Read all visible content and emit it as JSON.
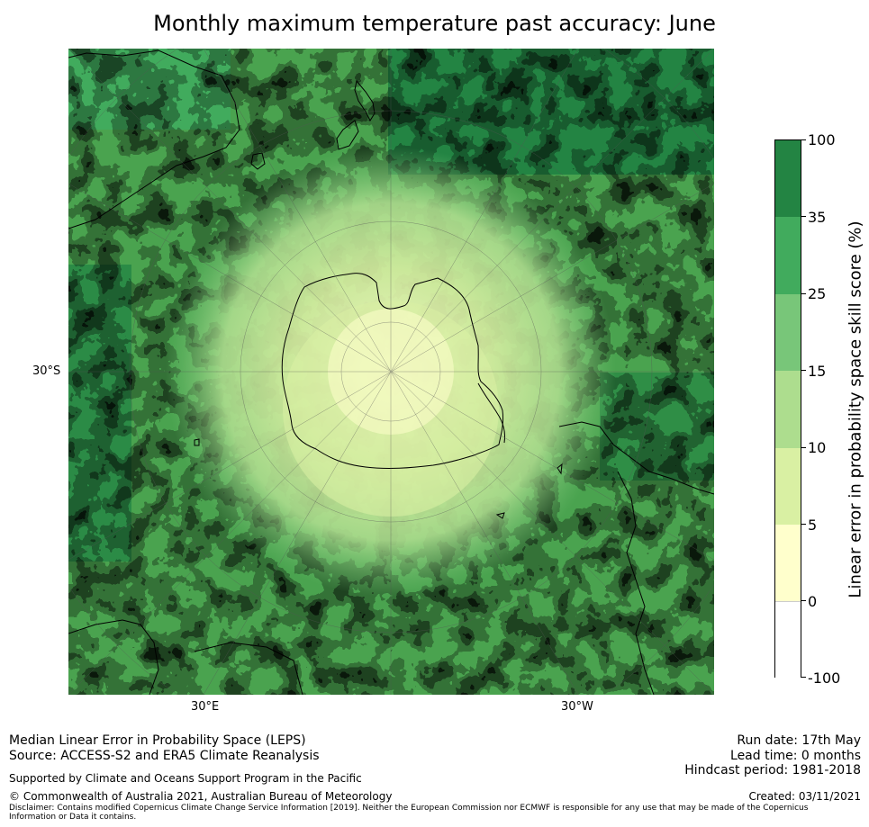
{
  "title": "Monthly maximum temperature past accuracy: June",
  "map": {
    "projection": "south-polar-stereographic",
    "background_color": "#4aa34f",
    "lat_labels": [
      "30°S"
    ],
    "lon_labels": [
      "30°E",
      "30°W"
    ],
    "land_outline_color": "#000000"
  },
  "colorbar": {
    "label": "Linear error in probability space skill score (%)",
    "ticks": [
      "100",
      "35",
      "25",
      "15",
      "10",
      "5",
      "0",
      "-100"
    ],
    "bins": [
      {
        "from": 35,
        "to": 100,
        "color": "#238443"
      },
      {
        "from": 25,
        "to": 35,
        "color": "#41ab5d"
      },
      {
        "from": 15,
        "to": 25,
        "color": "#78c679"
      },
      {
        "from": 10,
        "to": 15,
        "color": "#addd8e"
      },
      {
        "from": 5,
        "to": 10,
        "color": "#d9f0a3"
      },
      {
        "from": 0,
        "to": 5,
        "color": "#ffffcc"
      },
      {
        "from": -100,
        "to": 0,
        "color": "#ffffff"
      }
    ]
  },
  "footer": {
    "line1": "Median Linear Error in Probability Space (LEPS)",
    "line2": "Source: ACCESS-S2 and ERA5 Climate Reanalysis",
    "support": "Supported by Climate and Oceans Support Program in the Pacific",
    "copyright": "© Commonwealth of Australia 2021, Australian Bureau of Meteorology",
    "disclaimer1": "Disclaimer: Contains modified Copernicus Climate Change Service Information [2019]. Neither the European Commission nor ECMWF is responsible for any use that may be made of the Copernicus",
    "disclaimer2": "Information or Data it contains.",
    "run_date": "Run date: 17th May",
    "lead_time": "Lead time: 0 months",
    "hindcast": "Hindcast period: 1981-2018",
    "created": "Created: 03/11/2021"
  }
}
